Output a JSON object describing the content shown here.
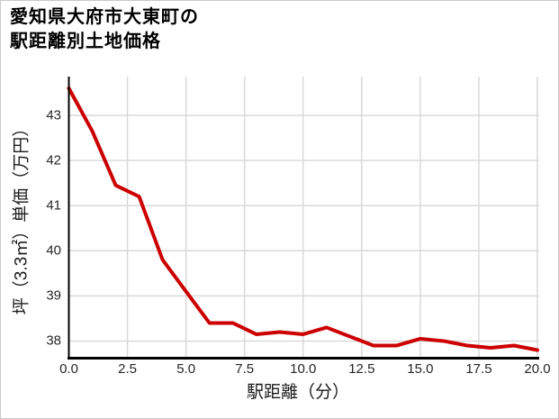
{
  "page": {
    "background": "#ffffff",
    "border_color": "#c9c9c9"
  },
  "chart_data": {
    "type": "line",
    "title": "愛知県大府市大東町の\n駅距離別土地価格",
    "xlabel": "駅距離（分）",
    "ylabel": "坪（3.3㎡）単価（万円）",
    "x": [
      0,
      1,
      2,
      3,
      4,
      5,
      6,
      7,
      8,
      9,
      10,
      11,
      12,
      13,
      14,
      15,
      16,
      17,
      18,
      19,
      20
    ],
    "values": [
      43.6,
      42.65,
      41.45,
      41.2,
      39.8,
      39.1,
      38.4,
      38.4,
      38.15,
      38.2,
      38.15,
      38.3,
      38.1,
      37.9,
      37.9,
      38.05,
      38.0,
      37.9,
      37.85,
      37.9,
      37.8
    ],
    "xlim": [
      0,
      20
    ],
    "ylim": [
      37.62,
      43.86
    ],
    "xticks": [
      0,
      2.5,
      5,
      7.5,
      10,
      12.5,
      15,
      17.5,
      20
    ],
    "xtick_labels": [
      "0.0",
      "2.5",
      "5.0",
      "7.5",
      "10.0",
      "12.5",
      "15.0",
      "17.5",
      "20.0"
    ],
    "yticks": [
      38,
      39,
      40,
      41,
      42,
      43
    ],
    "ytick_labels": [
      "38",
      "39",
      "40",
      "41",
      "42",
      "43"
    ],
    "grid": true,
    "legend": "none",
    "line_color": "#cc0000",
    "line_width": 4,
    "grid_color": "#d9d9d9",
    "axis_color": "#000000",
    "tick_label_color": "#262626"
  }
}
